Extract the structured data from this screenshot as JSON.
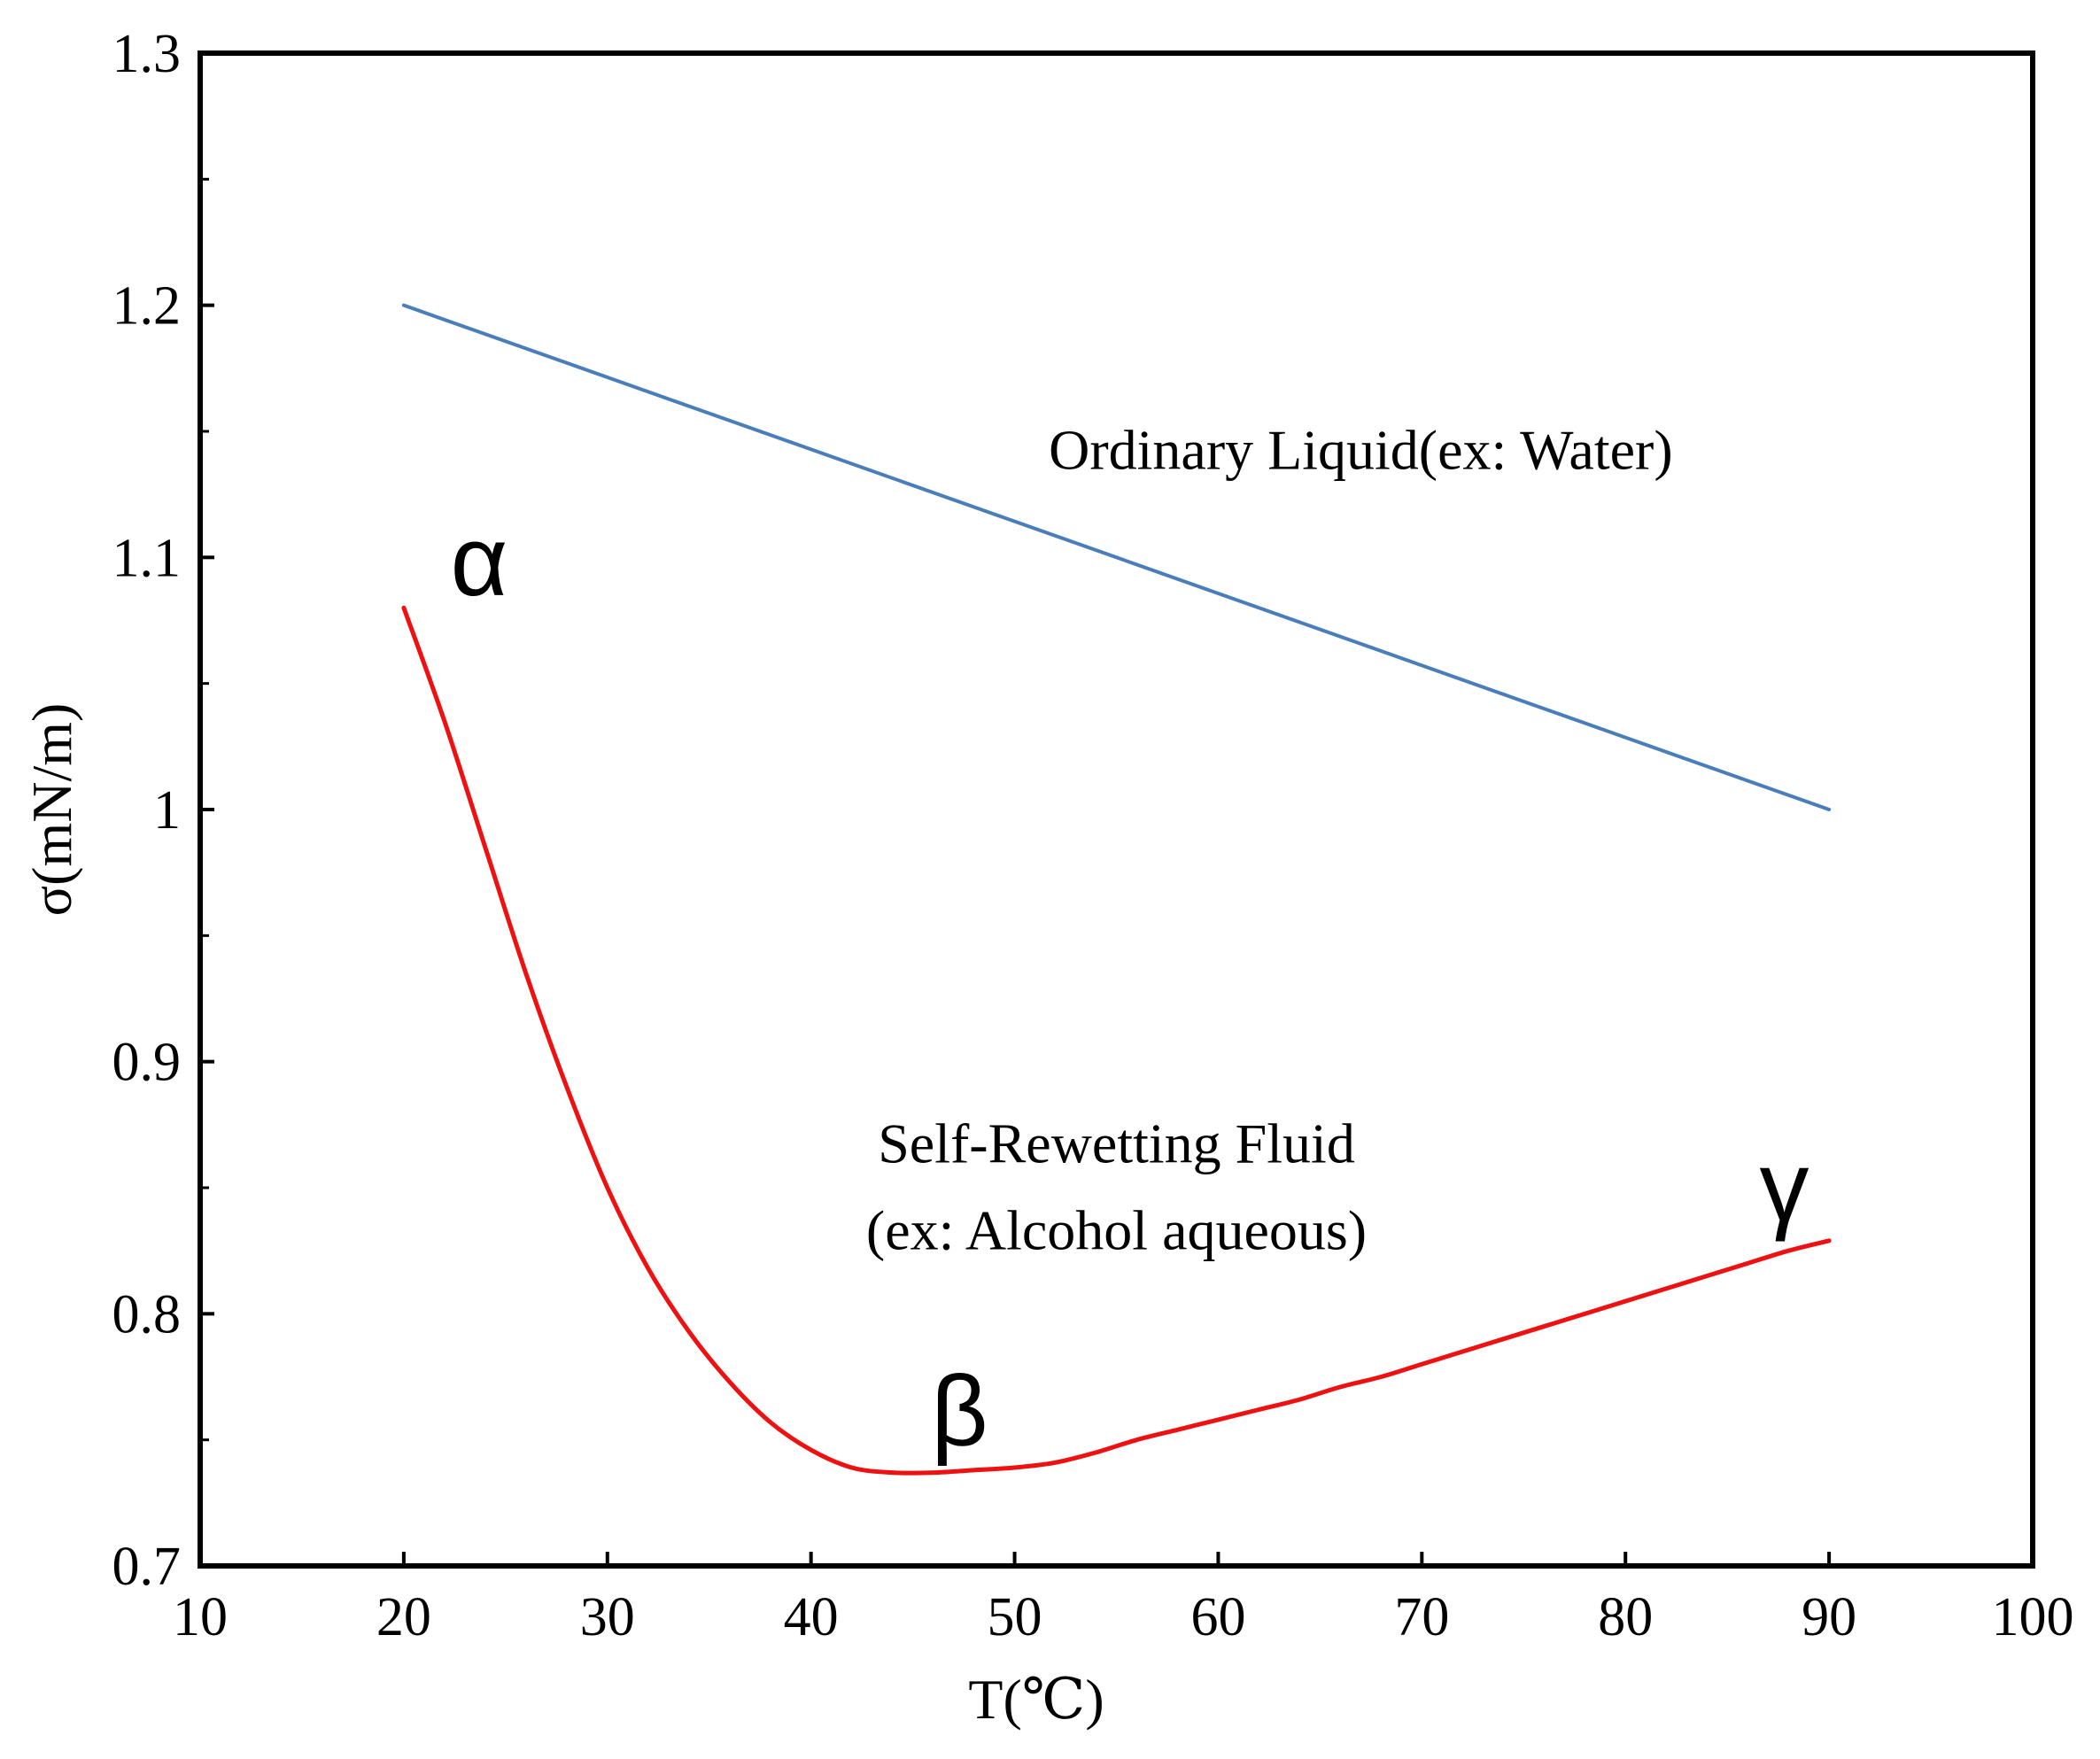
{
  "chart_data": {
    "type": "line",
    "title": "",
    "xlabel": "T(℃)",
    "ylabel": "σ(mN/m)",
    "xlim": [
      10,
      100
    ],
    "ylim": [
      0.7,
      1.3
    ],
    "xticks": [
      10,
      20,
      30,
      40,
      50,
      60,
      70,
      80,
      90,
      100
    ],
    "yticks": [
      0.7,
      0.8,
      0.9,
      1,
      1.1,
      1.2,
      1.3
    ],
    "xtick_labels": [
      "10",
      "20",
      "30",
      "40",
      "50",
      "60",
      "70",
      "80",
      "90",
      "100"
    ],
    "ytick_labels": [
      "0.7",
      "0.8",
      "0.9",
      "1",
      "1.1",
      "1.2",
      "1.3"
    ],
    "grid": false,
    "series": [
      {
        "name": "Ordinary Liquid(ex: Water)",
        "color": "#4a7ebb",
        "x": [
          20,
          90
        ],
        "y": [
          1.2,
          1.0
        ]
      },
      {
        "name": "Self-Rewetting Fluid (ex: Alcohol aqueous)",
        "color": "#ee1111",
        "x": [
          20,
          22,
          24,
          26,
          28,
          30,
          32,
          34,
          36,
          38,
          40,
          42,
          44,
          46,
          48,
          50,
          52,
          54,
          56,
          58,
          60,
          62,
          64,
          66,
          68,
          70,
          72,
          74,
          76,
          78,
          80,
          82,
          84,
          86,
          88,
          90
        ],
        "y": [
          1.08,
          1.035,
          0.985,
          0.935,
          0.89,
          0.85,
          0.818,
          0.793,
          0.773,
          0.757,
          0.746,
          0.739,
          0.737,
          0.737,
          0.738,
          0.739,
          0.741,
          0.745,
          0.75,
          0.754,
          0.758,
          0.762,
          0.766,
          0.771,
          0.775,
          0.78,
          0.785,
          0.79,
          0.795,
          0.8,
          0.805,
          0.81,
          0.815,
          0.82,
          0.825,
          0.829
        ]
      }
    ],
    "annotations": [
      {
        "id": "ordinary",
        "lines": [
          "Ordinary Liquid(ex: Water)"
        ],
        "x": 67,
        "y": 1.135,
        "anchor": "middle",
        "style": "annot"
      },
      {
        "id": "selfrewet",
        "lines": [
          "Self-Rewetting Fluid",
          "(ex: Alcohol aqueous)"
        ],
        "x": 55,
        "y": 0.86,
        "anchor": "middle",
        "style": "annot"
      },
      {
        "id": "alpha",
        "lines": [
          "α"
        ],
        "x": 23.7,
        "y": 1.085,
        "anchor": "middle",
        "style": "greek"
      },
      {
        "id": "beta",
        "lines": [
          "β"
        ],
        "x": 47.3,
        "y": 0.748,
        "anchor": "middle",
        "style": "greek"
      },
      {
        "id": "gamma",
        "lines": [
          "γ"
        ],
        "x": 87.8,
        "y": 0.837,
        "anchor": "middle",
        "style": "greek"
      }
    ]
  }
}
